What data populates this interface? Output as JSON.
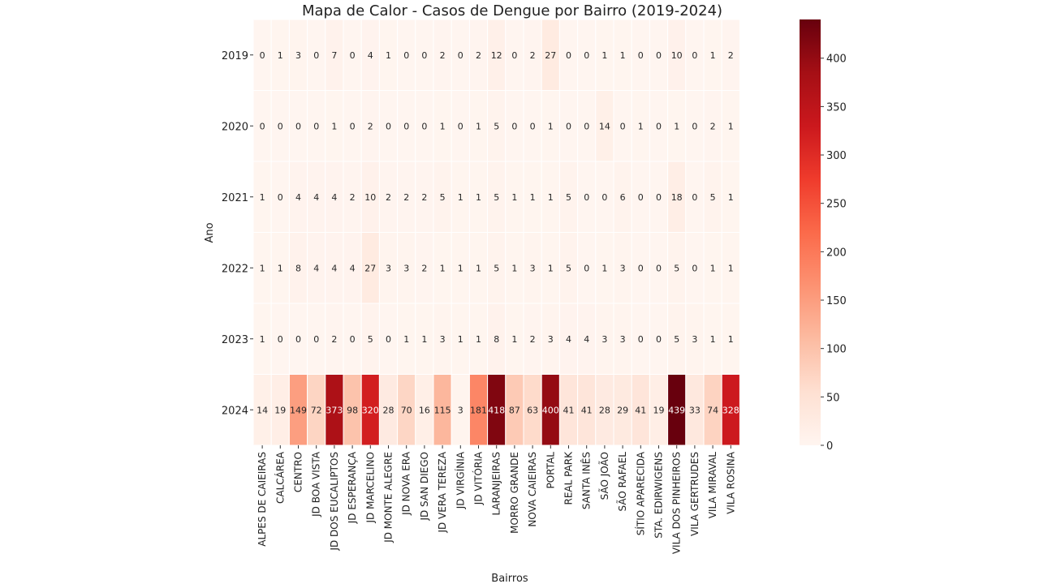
{
  "chart_data": {
    "type": "heatmap",
    "title": "Mapa de Calor - Casos de Dengue por Bairro (2019-2024)",
    "xlabel": "Bairros",
    "ylabel": "Ano",
    "x_categories": [
      "ALPES DE CAIEIRAS",
      "CALCÁREA",
      "CENTRO",
      "JD BOA VISTA",
      "JD DOS EUCALIPTOS",
      "JD ESPERANÇA",
      "JD MARCELINO",
      "JD MONTE ALEGRE",
      "JD NOVA ERA",
      "JD SAN DIEGO",
      "JD VERA TEREZA",
      "JD VIRGÍNIA",
      "JD VITÓRIA",
      "LARANJEIRAS",
      "MORRO GRANDE",
      "NOVA CAIEIRAS",
      "PORTAL",
      "REAL PARK",
      "SANTA INÊS",
      "SÃO JOÃO",
      "SÃO RAFAEL",
      "SÍTIO APARECIDA",
      "STA. EDIRWIGENS",
      "VILA DOS PINHEIROS",
      "VILA GERTRUDES",
      "VILA MIRAVAL",
      "VILA ROSINA"
    ],
    "y_categories": [
      "2019",
      "2020",
      "2021",
      "2022",
      "2023",
      "2024"
    ],
    "values": [
      [
        0,
        1,
        3,
        0,
        7,
        0,
        4,
        1,
        0,
        0,
        2,
        0,
        2,
        12,
        0,
        2,
        27,
        0,
        0,
        1,
        1,
        0,
        0,
        10,
        0,
        1,
        2
      ],
      [
        0,
        0,
        0,
        0,
        1,
        0,
        2,
        0,
        0,
        0,
        1,
        0,
        1,
        5,
        0,
        0,
        1,
        0,
        0,
        14,
        0,
        1,
        0,
        1,
        0,
        2,
        1
      ],
      [
        1,
        0,
        4,
        4,
        4,
        2,
        10,
        2,
        2,
        2,
        5,
        1,
        1,
        5,
        1,
        1,
        1,
        5,
        0,
        0,
        6,
        0,
        0,
        18,
        0,
        5,
        1
      ],
      [
        1,
        1,
        8,
        4,
        4,
        4,
        27,
        3,
        3,
        2,
        1,
        1,
        1,
        5,
        1,
        3,
        1,
        5,
        0,
        1,
        3,
        0,
        0,
        5,
        0,
        1,
        1
      ],
      [
        1,
        0,
        0,
        0,
        2,
        0,
        5,
        0,
        1,
        1,
        3,
        1,
        1,
        8,
        1,
        2,
        3,
        4,
        4,
        3,
        3,
        0,
        0,
        5,
        3,
        1,
        1
      ],
      [
        14,
        19,
        149,
        72,
        373,
        98,
        320,
        28,
        70,
        16,
        115,
        3,
        181,
        418,
        87,
        63,
        400,
        41,
        41,
        28,
        29,
        41,
        19,
        439,
        33,
        74,
        328
      ]
    ],
    "colormap": "Reds",
    "colorbar": {
      "min": 0,
      "max": 440,
      "ticks": [
        "0",
        "50",
        "100",
        "150",
        "200",
        "250",
        "300",
        "350",
        "400"
      ]
    },
    "annotations": true
  }
}
